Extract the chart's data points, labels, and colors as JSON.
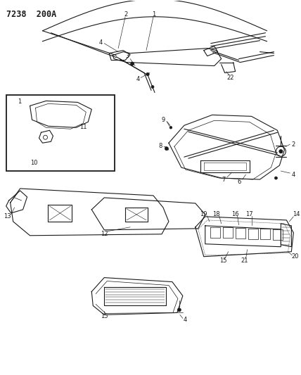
{
  "title": "7238  200A",
  "bg_color": "#ffffff",
  "line_color": "#1a1a1a",
  "title_fontsize": 8.5,
  "label_fontsize": 6.0,
  "figsize": [
    4.28,
    5.33
  ],
  "dpi": 100
}
